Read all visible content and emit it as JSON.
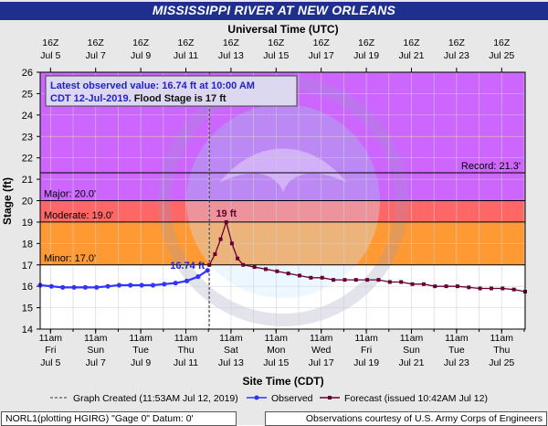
{
  "title": "MISSISSIPPI RIVER AT NEW ORLEANS",
  "footer": {
    "left": "NORL1(plotting HGIRG) \"Gage 0\" Datum: 0'",
    "right": "Observations courtesy of U.S. Army Corps of Engineers"
  },
  "colors": {
    "banner": "#1e2f8f",
    "record_band": "#cc66ff",
    "major_band": "#ff6666",
    "moderate_band": "#ff9933",
    "minor_band": "#ffcc66",
    "observed": "#3333ff",
    "forecast": "#660033",
    "grid": "#d0d0d0"
  },
  "chart_data": {
    "type": "line",
    "title": "MISSISSIPPI RIVER AT NEW ORLEANS",
    "top_axis_label": "Universal Time (UTC)",
    "xlabel": "Site Time (CDT)",
    "ylabel": "Stage (ft)",
    "ylim": [
      14,
      26
    ],
    "yticks": [
      14,
      15,
      16,
      17,
      18,
      19,
      20,
      21,
      22,
      23,
      24,
      25,
      26
    ],
    "xlim": [
      "2019-07-05 00:00",
      "2019-07-26 12:00"
    ],
    "grid": true,
    "top_ticks": [
      {
        "hour": "16Z",
        "date": "Jul 5"
      },
      {
        "hour": "16Z",
        "date": "Jul 7"
      },
      {
        "hour": "16Z",
        "date": "Jul 9"
      },
      {
        "hour": "16Z",
        "date": "Jul 11"
      },
      {
        "hour": "16Z",
        "date": "Jul 13"
      },
      {
        "hour": "16Z",
        "date": "Jul 15"
      },
      {
        "hour": "16Z",
        "date": "Jul 17"
      },
      {
        "hour": "16Z",
        "date": "Jul 19"
      },
      {
        "hour": "16Z",
        "date": "Jul 21"
      },
      {
        "hour": "16Z",
        "date": "Jul 23"
      },
      {
        "hour": "16Z",
        "date": "Jul 25"
      }
    ],
    "bottom_ticks": [
      {
        "time": "11am",
        "day": "Fri",
        "date": "Jul 5"
      },
      {
        "time": "11am",
        "day": "Sun",
        "date": "Jul 7"
      },
      {
        "time": "11am",
        "day": "Tue",
        "date": "Jul 9"
      },
      {
        "time": "11am",
        "day": "Thu",
        "date": "Jul 11"
      },
      {
        "time": "11am",
        "day": "Sat",
        "date": "Jul 13"
      },
      {
        "time": "11am",
        "day": "Mon",
        "date": "Jul 15"
      },
      {
        "time": "11am",
        "day": "Wed",
        "date": "Jul 17"
      },
      {
        "time": "11am",
        "day": "Fri",
        "date": "Jul 19"
      },
      {
        "time": "11am",
        "day": "Sun",
        "date": "Jul 21"
      },
      {
        "time": "11am",
        "day": "Tue",
        "date": "Jul 23"
      },
      {
        "time": "11am",
        "day": "Thu",
        "date": "Jul 25"
      }
    ],
    "flood_categories": [
      {
        "label": "Record: 21.3'",
        "stage": 21.3
      },
      {
        "label": "Major: 20.0'",
        "stage": 20.0
      },
      {
        "label": "Moderate: 19.0'",
        "stage": 19.0
      },
      {
        "label": "Minor: 17.0'",
        "stage": 17.0
      }
    ],
    "info_box": {
      "line1": "Latest observed value: 16.74 ft at 10:00 AM",
      "line2_a": "CDT 12-Jul-2019. ",
      "line2_b": "Flood Stage is 17 ft"
    },
    "annotations": {
      "observed_last": "16.74 ft",
      "forecast_peak": "19 ft"
    },
    "graph_created": "2019-07-12 11:53",
    "series": [
      {
        "name": "Observed",
        "style": "line-circle",
        "points": [
          [
            "2019-07-05 00:00",
            16.05
          ],
          [
            "2019-07-05 12:00",
            16.0
          ],
          [
            "2019-07-06 00:00",
            15.95
          ],
          [
            "2019-07-06 12:00",
            15.95
          ],
          [
            "2019-07-07 00:00",
            15.95
          ],
          [
            "2019-07-07 12:00",
            15.95
          ],
          [
            "2019-07-08 00:00",
            16.0
          ],
          [
            "2019-07-08 12:00",
            16.05
          ],
          [
            "2019-07-09 00:00",
            16.05
          ],
          [
            "2019-07-09 12:00",
            16.05
          ],
          [
            "2019-07-10 00:00",
            16.05
          ],
          [
            "2019-07-10 12:00",
            16.1
          ],
          [
            "2019-07-11 00:00",
            16.15
          ],
          [
            "2019-07-11 12:00",
            16.25
          ],
          [
            "2019-07-12 00:00",
            16.45
          ],
          [
            "2019-07-12 10:00",
            16.74
          ]
        ]
      },
      {
        "name": "Forecast",
        "issued": "issued 10:42AM Jul 12",
        "style": "line-square",
        "points": [
          [
            "2019-07-12 12:00",
            17.0
          ],
          [
            "2019-07-12 18:00",
            17.5
          ],
          [
            "2019-07-13 00:00",
            18.2
          ],
          [
            "2019-07-13 06:00",
            19.0
          ],
          [
            "2019-07-13 12:00",
            18.0
          ],
          [
            "2019-07-13 18:00",
            17.3
          ],
          [
            "2019-07-14 00:00",
            17.0
          ],
          [
            "2019-07-14 12:00",
            16.9
          ],
          [
            "2019-07-15 00:00",
            16.8
          ],
          [
            "2019-07-15 12:00",
            16.7
          ],
          [
            "2019-07-16 00:00",
            16.6
          ],
          [
            "2019-07-16 12:00",
            16.5
          ],
          [
            "2019-07-17 00:00",
            16.4
          ],
          [
            "2019-07-17 12:00",
            16.4
          ],
          [
            "2019-07-18 00:00",
            16.3
          ],
          [
            "2019-07-18 12:00",
            16.3
          ],
          [
            "2019-07-19 00:00",
            16.3
          ],
          [
            "2019-07-19 12:00",
            16.3
          ],
          [
            "2019-07-20 00:00",
            16.3
          ],
          [
            "2019-07-20 12:00",
            16.2
          ],
          [
            "2019-07-21 00:00",
            16.2
          ],
          [
            "2019-07-21 12:00",
            16.1
          ],
          [
            "2019-07-22 00:00",
            16.1
          ],
          [
            "2019-07-22 12:00",
            16.0
          ],
          [
            "2019-07-23 00:00",
            16.0
          ],
          [
            "2019-07-23 12:00",
            16.0
          ],
          [
            "2019-07-24 00:00",
            15.95
          ],
          [
            "2019-07-24 12:00",
            15.9
          ],
          [
            "2019-07-25 00:00",
            15.9
          ],
          [
            "2019-07-25 12:00",
            15.9
          ],
          [
            "2019-07-26 00:00",
            15.85
          ],
          [
            "2019-07-26 12:00",
            15.75
          ]
        ]
      }
    ],
    "legend": {
      "placement": "bottom",
      "graph_created_label": "Graph Created (11:53AM Jul 12, 2019)",
      "observed_label": "Observed",
      "forecast_label": "Forecast (issued 10:42AM Jul 12)"
    }
  }
}
